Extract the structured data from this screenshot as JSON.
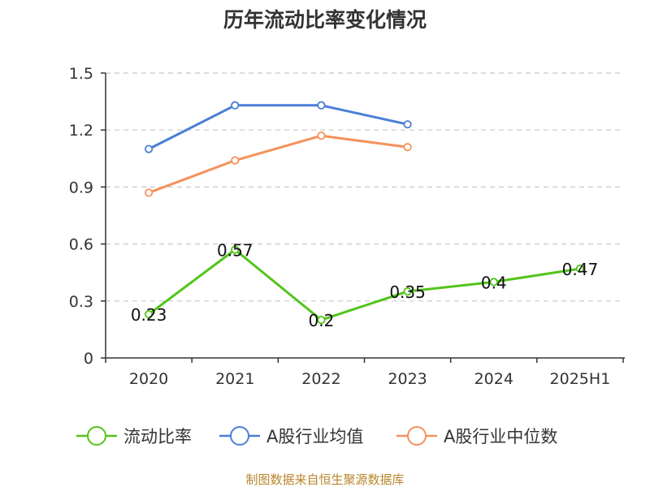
{
  "chart_data": {
    "type": "line",
    "title": "历年流动比率变化情况",
    "categories": [
      "2020",
      "2021",
      "2022",
      "2023",
      "2024",
      "2025H1"
    ],
    "y_ticks": [
      "0",
      "0.3",
      "0.6",
      "0.9",
      "1.2",
      "1.5"
    ],
    "ylim": [
      0,
      1.5
    ],
    "grid": true,
    "legend_position": "bottom",
    "series": [
      {
        "name": "流动比率",
        "color": "#52c41a",
        "values": [
          0.23,
          0.57,
          0.2,
          0.35,
          0.4,
          0.47
        ],
        "data_labels": [
          "0.23",
          "0.57",
          "0.2",
          "0.35",
          "0.4",
          "0.47"
        ]
      },
      {
        "name": "A股行业均值",
        "color": "#4a7fd6",
        "values": [
          1.1,
          1.33,
          1.33,
          1.23,
          null,
          null
        ]
      },
      {
        "name": "A股行业中位数",
        "color": "#f5915a",
        "values": [
          0.87,
          1.04,
          1.17,
          1.11,
          null,
          null
        ]
      }
    ]
  },
  "source": "制图数据来自恒生聚源数据库"
}
